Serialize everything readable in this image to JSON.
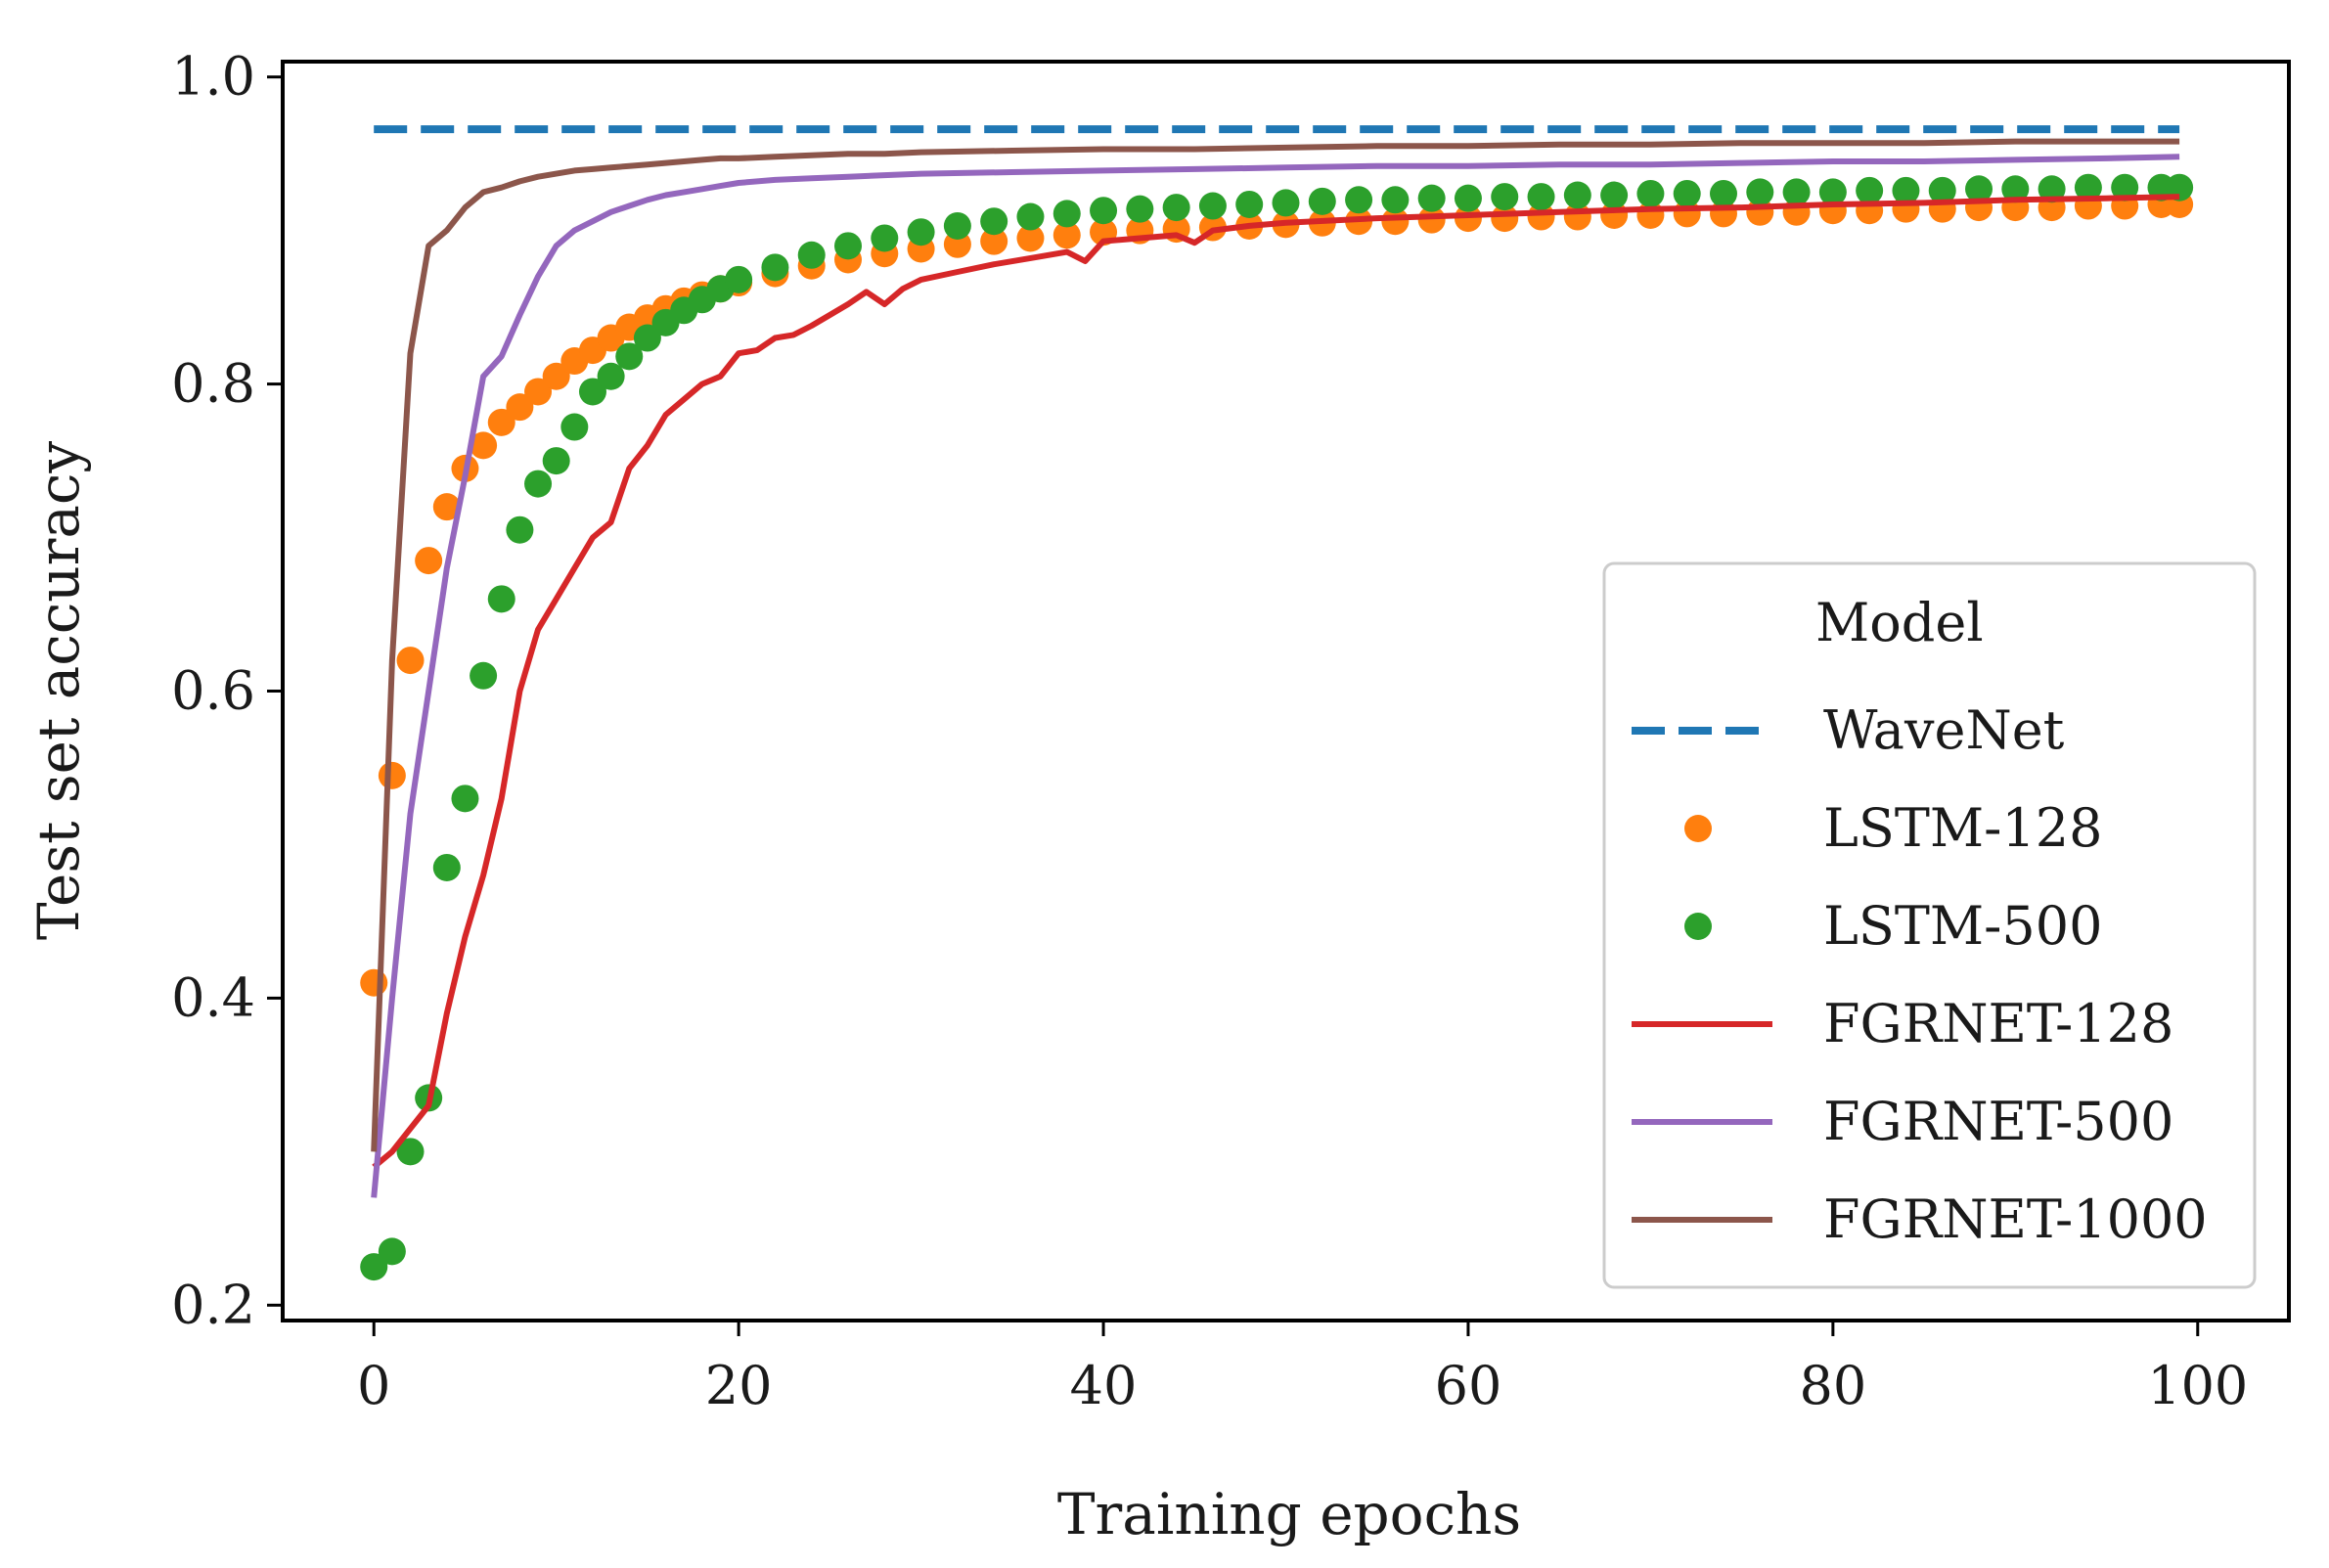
{
  "chart_data": {
    "type": "line",
    "title": "",
    "xlabel": "Training epochs",
    "ylabel": "Test set accuracy",
    "xlim": [
      -5,
      105
    ],
    "ylim": [
      0.19,
      1.01
    ],
    "xticks": [
      0,
      20,
      40,
      60,
      80,
      100
    ],
    "yticks": [
      0.2,
      0.4,
      0.6,
      0.8,
      1.0
    ],
    "xtick_labels": [
      "0",
      "20",
      "40",
      "60",
      "80",
      "100"
    ],
    "ytick_labels": [
      "0.2",
      "0.4",
      "0.6",
      "0.8",
      "1.0"
    ],
    "grid": false,
    "legend": {
      "title": "Model",
      "location": "lower-right"
    },
    "series": [
      {
        "name": "WaveNet",
        "style": "dashed",
        "color": "#1f77b4",
        "x": [
          0,
          99
        ],
        "y": [
          0.966,
          0.966
        ]
      },
      {
        "name": "LSTM-128",
        "style": "markers",
        "color": "#ff7f0e",
        "x": [
          0,
          1,
          2,
          3,
          4,
          5,
          6,
          7,
          8,
          9,
          10,
          11,
          12,
          13,
          14,
          15,
          16,
          17,
          18,
          19,
          20,
          22,
          24,
          26,
          28,
          30,
          32,
          34,
          36,
          38,
          40,
          42,
          44,
          46,
          48,
          50,
          52,
          54,
          56,
          58,
          60,
          62,
          64,
          66,
          68,
          70,
          72,
          74,
          76,
          78,
          80,
          82,
          84,
          86,
          88,
          90,
          92,
          94,
          96,
          98,
          99
        ],
        "y": [
          0.41,
          0.545,
          0.62,
          0.685,
          0.72,
          0.745,
          0.76,
          0.775,
          0.785,
          0.795,
          0.805,
          0.815,
          0.822,
          0.83,
          0.837,
          0.843,
          0.849,
          0.854,
          0.858,
          0.862,
          0.866,
          0.872,
          0.877,
          0.881,
          0.885,
          0.888,
          0.891,
          0.893,
          0.895,
          0.897,
          0.899,
          0.9,
          0.901,
          0.902,
          0.903,
          0.904,
          0.905,
          0.906,
          0.906,
          0.907,
          0.908,
          0.908,
          0.909,
          0.909,
          0.91,
          0.91,
          0.911,
          0.911,
          0.912,
          0.912,
          0.913,
          0.913,
          0.914,
          0.914,
          0.915,
          0.915,
          0.915,
          0.916,
          0.916,
          0.917,
          0.917
        ]
      },
      {
        "name": "LSTM-500",
        "style": "markers",
        "color": "#2ca02c",
        "x": [
          0,
          1,
          2,
          3,
          4,
          5,
          6,
          7,
          8,
          9,
          10,
          11,
          12,
          13,
          14,
          15,
          16,
          17,
          18,
          19,
          20,
          22,
          24,
          26,
          28,
          30,
          32,
          34,
          36,
          38,
          40,
          42,
          44,
          46,
          48,
          50,
          52,
          54,
          56,
          58,
          60,
          62,
          64,
          66,
          68,
          70,
          72,
          74,
          76,
          78,
          80,
          82,
          84,
          86,
          88,
          90,
          92,
          94,
          96,
          98,
          99
        ],
        "y": [
          0.225,
          0.235,
          0.3,
          0.335,
          0.485,
          0.53,
          0.61,
          0.66,
          0.705,
          0.735,
          0.75,
          0.772,
          0.795,
          0.805,
          0.818,
          0.83,
          0.84,
          0.848,
          0.855,
          0.862,
          0.868,
          0.876,
          0.884,
          0.89,
          0.895,
          0.899,
          0.903,
          0.906,
          0.909,
          0.911,
          0.913,
          0.914,
          0.915,
          0.916,
          0.917,
          0.918,
          0.919,
          0.92,
          0.92,
          0.921,
          0.921,
          0.922,
          0.922,
          0.923,
          0.923,
          0.924,
          0.924,
          0.924,
          0.925,
          0.925,
          0.925,
          0.926,
          0.926,
          0.926,
          0.927,
          0.927,
          0.927,
          0.928,
          0.928,
          0.928,
          0.928
        ]
      },
      {
        "name": "FGRNET-128",
        "style": "solid",
        "color": "#d62728",
        "x": [
          0,
          1,
          2,
          3,
          4,
          5,
          6,
          7,
          8,
          9,
          10,
          11,
          12,
          13,
          14,
          15,
          16,
          17,
          18,
          19,
          20,
          21,
          22,
          23,
          24,
          25,
          26,
          27,
          28,
          29,
          30,
          32,
          34,
          36,
          38,
          39,
          40,
          42,
          44,
          45,
          46,
          48,
          50,
          55,
          60,
          65,
          70,
          75,
          80,
          85,
          90,
          95,
          99
        ],
        "y": [
          0.29,
          0.3,
          0.315,
          0.33,
          0.39,
          0.44,
          0.48,
          0.53,
          0.6,
          0.64,
          0.66,
          0.68,
          0.7,
          0.71,
          0.745,
          0.76,
          0.78,
          0.79,
          0.8,
          0.805,
          0.82,
          0.822,
          0.83,
          0.832,
          0.838,
          0.845,
          0.852,
          0.86,
          0.852,
          0.862,
          0.868,
          0.873,
          0.878,
          0.882,
          0.886,
          0.88,
          0.893,
          0.895,
          0.897,
          0.892,
          0.9,
          0.903,
          0.905,
          0.908,
          0.91,
          0.912,
          0.914,
          0.915,
          0.917,
          0.918,
          0.92,
          0.921,
          0.922
        ]
      },
      {
        "name": "FGRNET-500",
        "style": "solid",
        "color": "#9467bd",
        "x": [
          0,
          1,
          2,
          3,
          4,
          5,
          6,
          7,
          8,
          9,
          10,
          11,
          12,
          13,
          14,
          15,
          16,
          17,
          18,
          19,
          20,
          22,
          24,
          26,
          28,
          30,
          35,
          40,
          45,
          50,
          55,
          60,
          65,
          70,
          75,
          80,
          85,
          90,
          95,
          99
        ],
        "y": [
          0.27,
          0.4,
          0.52,
          0.6,
          0.68,
          0.74,
          0.805,
          0.818,
          0.845,
          0.87,
          0.89,
          0.9,
          0.906,
          0.912,
          0.916,
          0.92,
          0.923,
          0.925,
          0.927,
          0.929,
          0.931,
          0.933,
          0.934,
          0.935,
          0.936,
          0.937,
          0.938,
          0.939,
          0.94,
          0.941,
          0.942,
          0.942,
          0.943,
          0.943,
          0.944,
          0.945,
          0.945,
          0.946,
          0.947,
          0.948
        ]
      },
      {
        "name": "FGRNET-1000",
        "style": "solid",
        "color": "#8c564b",
        "x": [
          0,
          1,
          2,
          3,
          4,
          5,
          6,
          7,
          8,
          9,
          10,
          11,
          12,
          13,
          14,
          15,
          16,
          17,
          18,
          19,
          20,
          22,
          24,
          26,
          28,
          30,
          35,
          40,
          45,
          50,
          55,
          60,
          65,
          70,
          75,
          80,
          85,
          90,
          95,
          99
        ],
        "y": [
          0.3,
          0.62,
          0.82,
          0.89,
          0.9,
          0.915,
          0.925,
          0.928,
          0.932,
          0.935,
          0.937,
          0.939,
          0.94,
          0.941,
          0.942,
          0.943,
          0.944,
          0.945,
          0.946,
          0.947,
          0.947,
          0.948,
          0.949,
          0.95,
          0.95,
          0.951,
          0.952,
          0.953,
          0.953,
          0.954,
          0.955,
          0.955,
          0.956,
          0.956,
          0.957,
          0.957,
          0.957,
          0.958,
          0.958,
          0.958
        ]
      }
    ]
  }
}
